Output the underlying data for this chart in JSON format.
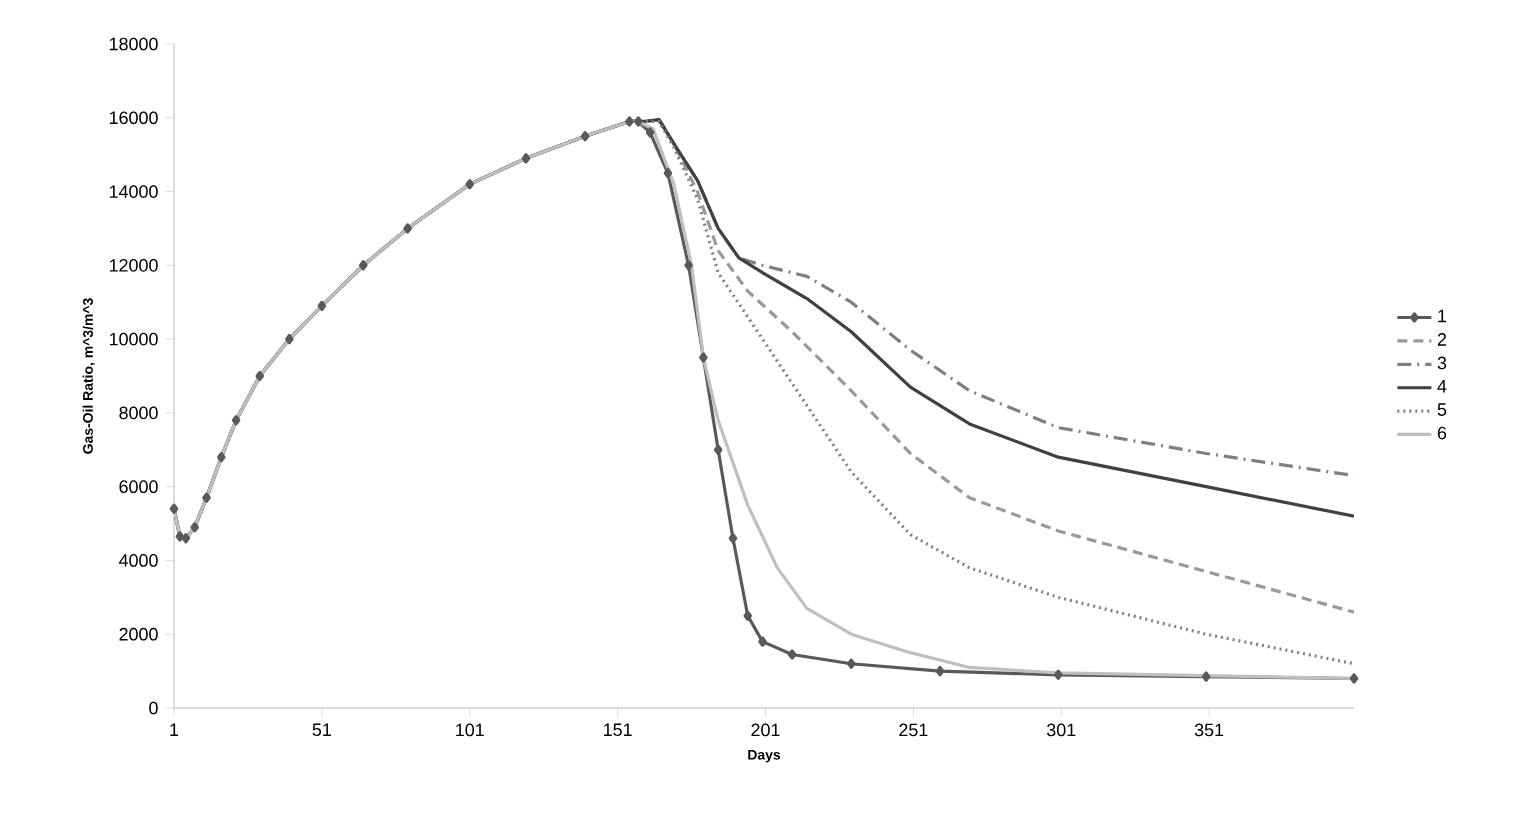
{
  "chart_data": {
    "type": "line",
    "xlabel": "Days",
    "ylabel": "Gas-Oil Ratio, m^3/m^3",
    "xlim": [
      1,
      400
    ],
    "xticks": [
      1,
      51,
      101,
      151,
      201,
      251,
      301,
      351
    ],
    "ylim": [
      0,
      18000
    ],
    "yticks": [
      0,
      2000,
      4000,
      6000,
      8000,
      10000,
      12000,
      14000,
      16000,
      18000
    ],
    "grid": false,
    "legend": "right",
    "series": [
      {
        "name": "1",
        "color": "#595959",
        "marker": "diamond",
        "line_style": "solid",
        "x": [
          1,
          3,
          5,
          8,
          12,
          17,
          22,
          30,
          40,
          51,
          65,
          80,
          101,
          120,
          140,
          155,
          158,
          162,
          168,
          175,
          180,
          185,
          190,
          195,
          200,
          210,
          230,
          260,
          300,
          350,
          400
        ],
        "values": [
          5400,
          4650,
          4600,
          4900,
          5700,
          6800,
          7800,
          9000,
          10000,
          10900,
          12000,
          13000,
          14200,
          14900,
          15500,
          15900,
          15900,
          15600,
          14500,
          12000,
          9500,
          7000,
          4600,
          2500,
          1800,
          1450,
          1200,
          1000,
          900,
          850,
          800
        ]
      },
      {
        "name": "2",
        "color": "#999999",
        "marker": "none",
        "line_style": "dashed",
        "x": [
          1,
          3,
          5,
          8,
          12,
          17,
          22,
          30,
          40,
          51,
          65,
          80,
          101,
          120,
          140,
          155,
          160,
          165,
          170,
          178,
          185,
          195,
          210,
          230,
          250,
          270,
          300,
          350,
          400
        ],
        "values": [
          5400,
          4650,
          4600,
          4900,
          5700,
          6800,
          7800,
          9000,
          10000,
          10900,
          12000,
          13000,
          14200,
          14900,
          15500,
          15900,
          15900,
          15950,
          15300,
          14000,
          12400,
          11300,
          10200,
          8600,
          6900,
          5700,
          4800,
          3700,
          2600
        ]
      },
      {
        "name": "3",
        "color": "#7f7f7f",
        "marker": "none",
        "line_style": "dashdot",
        "x": [
          1,
          3,
          5,
          8,
          12,
          17,
          22,
          30,
          40,
          51,
          65,
          80,
          101,
          120,
          140,
          155,
          160,
          165,
          170,
          178,
          185,
          192,
          200,
          215,
          230,
          250,
          270,
          300,
          350,
          400
        ],
        "values": [
          5400,
          4650,
          4600,
          4900,
          5700,
          6800,
          7800,
          9000,
          10000,
          10900,
          12000,
          13000,
          14200,
          14900,
          15500,
          15900,
          15900,
          15950,
          15300,
          14300,
          13000,
          12200,
          12000,
          11700,
          11000,
          9700,
          8600,
          7600,
          6900,
          6300
        ]
      },
      {
        "name": "4",
        "color": "#404040",
        "marker": "none",
        "line_style": "solid",
        "x": [
          1,
          3,
          5,
          8,
          12,
          17,
          22,
          30,
          40,
          51,
          65,
          80,
          101,
          120,
          140,
          155,
          160,
          165,
          170,
          178,
          185,
          192,
          200,
          215,
          230,
          250,
          270,
          300,
          350,
          400
        ],
        "values": [
          5400,
          4650,
          4600,
          4900,
          5700,
          6800,
          7800,
          9000,
          10000,
          10900,
          12000,
          13000,
          14200,
          14900,
          15500,
          15900,
          15900,
          15950,
          15300,
          14300,
          13000,
          12200,
          11800,
          11100,
          10200,
          8700,
          7700,
          6800,
          6000,
          5200
        ]
      },
      {
        "name": "5",
        "color": "#7f7f7f",
        "marker": "none",
        "line_style": "dotted",
        "x": [
          1,
          3,
          5,
          8,
          12,
          17,
          22,
          30,
          40,
          51,
          65,
          80,
          101,
          120,
          140,
          155,
          160,
          165,
          170,
          178,
          185,
          195,
          210,
          230,
          250,
          270,
          300,
          350,
          400
        ],
        "values": [
          5400,
          4650,
          4600,
          4900,
          5700,
          6800,
          7800,
          9000,
          10000,
          10900,
          12000,
          13000,
          14200,
          14900,
          15500,
          15900,
          15900,
          15900,
          15200,
          13800,
          11800,
          10600,
          8800,
          6400,
          4700,
          3800,
          3000,
          2000,
          1200
        ]
      },
      {
        "name": "6",
        "color": "#bfbfbf",
        "marker": "none",
        "line_style": "solid",
        "x": [
          1,
          3,
          5,
          8,
          12,
          17,
          22,
          30,
          40,
          51,
          65,
          80,
          101,
          120,
          140,
          155,
          158,
          163,
          170,
          176,
          180,
          185,
          195,
          205,
          215,
          230,
          250,
          270,
          300,
          400
        ],
        "values": [
          5400,
          4650,
          4600,
          4900,
          5700,
          6800,
          7800,
          9000,
          10000,
          10900,
          12000,
          13000,
          14200,
          14900,
          15500,
          15900,
          15900,
          15700,
          14200,
          12000,
          9500,
          7800,
          5500,
          3800,
          2700,
          2000,
          1500,
          1100,
          950,
          800
        ]
      }
    ]
  }
}
